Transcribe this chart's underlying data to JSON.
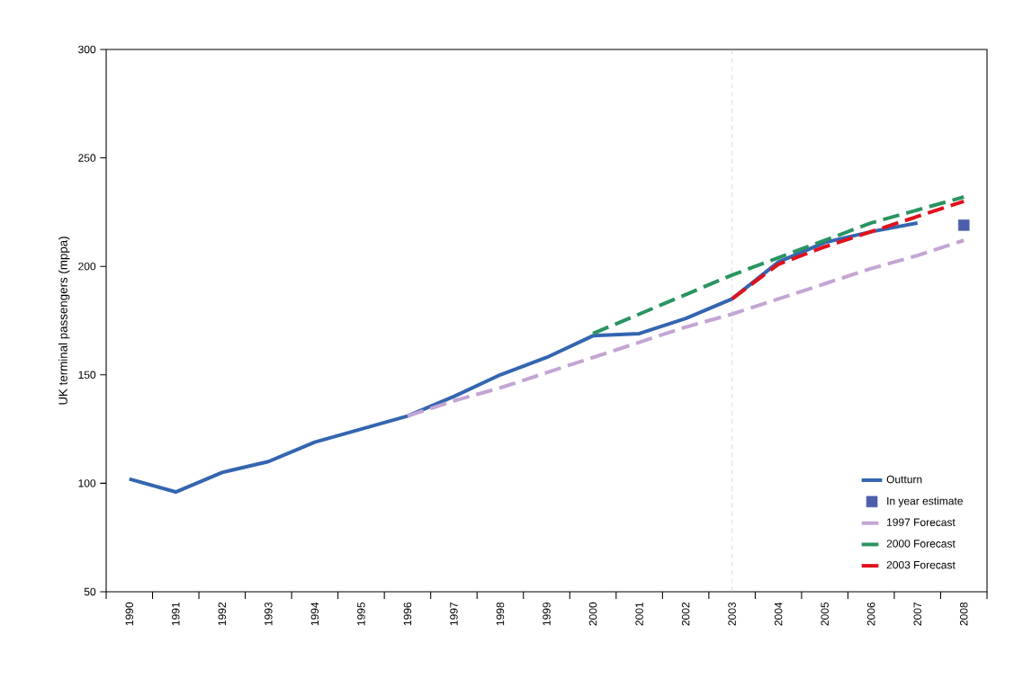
{
  "chart_data": {
    "type": "line",
    "ylabel": "UK terminal passengers (mppa)",
    "categories": [
      "1990",
      "1991",
      "1992",
      "1993",
      "1994",
      "1995",
      "1996",
      "1997",
      "1998",
      "1999",
      "2000",
      "2001",
      "2002",
      "2003",
      "2004",
      "2005",
      "2006",
      "2007",
      "2008"
    ],
    "series": [
      {
        "name": "Outturn",
        "color": "#3465b0",
        "line_style": "solid",
        "values": [
          102,
          96,
          105,
          110,
          119,
          125,
          131,
          140,
          150,
          158,
          168,
          169,
          176,
          185,
          202,
          211,
          216,
          220,
          null
        ]
      },
      {
        "name": "In year estimate",
        "type": "scatter",
        "marker": "square",
        "color": "#4b5fab",
        "values": [
          null,
          null,
          null,
          null,
          null,
          null,
          null,
          null,
          null,
          null,
          null,
          null,
          null,
          null,
          null,
          null,
          null,
          null,
          219
        ]
      },
      {
        "name": "1997 Forecast",
        "color": "#c3a5d3",
        "line_style": "dashed",
        "values": [
          null,
          null,
          null,
          null,
          null,
          null,
          131,
          138,
          144,
          151,
          158,
          165,
          172,
          178,
          185,
          192,
          199,
          205,
          212
        ]
      },
      {
        "name": "2000 Forecast",
        "color": "#2a9461",
        "line_style": "dashed",
        "values": [
          null,
          null,
          null,
          null,
          null,
          null,
          null,
          null,
          null,
          null,
          169,
          178,
          187,
          196,
          204,
          212,
          220,
          226,
          232
        ]
      },
      {
        "name": "2003 Forecast",
        "color": "#e0111b",
        "line_style": "dashed",
        "values": [
          null,
          null,
          null,
          null,
          null,
          null,
          null,
          null,
          null,
          null,
          null,
          null,
          null,
          185,
          201,
          209,
          216,
          223,
          230
        ]
      }
    ],
    "ylim": [
      50,
      300
    ],
    "yticks": [
      50,
      100,
      150,
      200,
      250,
      300
    ],
    "ref_lines": [
      {
        "axis": "x",
        "value": "2003",
        "color": "#c0c0c0",
        "line_style": "dashed"
      }
    ],
    "grid": false,
    "legend": "bottom right"
  }
}
